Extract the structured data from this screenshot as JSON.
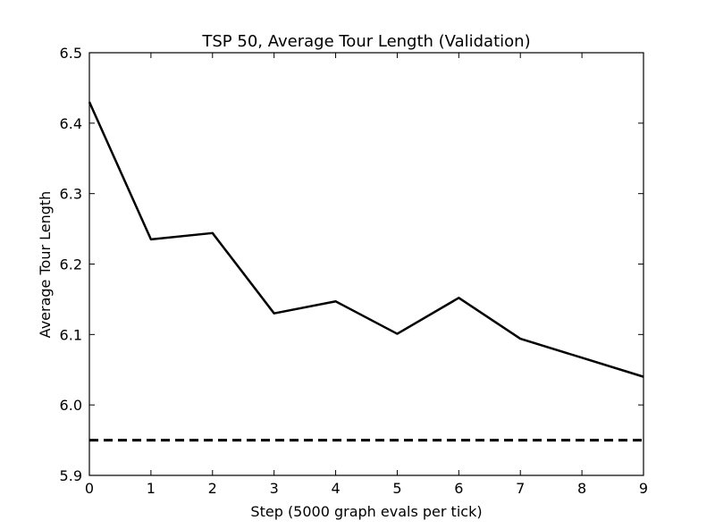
{
  "chart_data": {
    "type": "line",
    "title": "TSP 50, Average Tour Length (Validation)",
    "xlabel": "Step (5000 graph evals per tick)",
    "ylabel": "Average Tour Length",
    "xlim": [
      0,
      9
    ],
    "ylim": [
      5.9,
      6.5
    ],
    "xticks": [
      0,
      1,
      2,
      3,
      4,
      5,
      6,
      7,
      8,
      9
    ],
    "yticks": [
      5.9,
      6.0,
      6.1,
      6.2,
      6.3,
      6.4,
      6.5
    ],
    "ytick_labels": [
      "5.9",
      "6.0",
      "6.1",
      "6.2",
      "6.3",
      "6.4",
      "6.5"
    ],
    "grid": false,
    "series": [
      {
        "style": "solid",
        "color": "#000000",
        "x": [
          0,
          1,
          2,
          3,
          4,
          5,
          6,
          7,
          8,
          9
        ],
        "y": [
          6.43,
          6.235,
          6.244,
          6.13,
          6.147,
          6.101,
          6.152,
          6.094,
          6.067,
          6.04
        ]
      },
      {
        "style": "dashed",
        "color": "#000000",
        "x": [
          0,
          9
        ],
        "y": [
          5.95,
          5.95
        ]
      }
    ]
  }
}
